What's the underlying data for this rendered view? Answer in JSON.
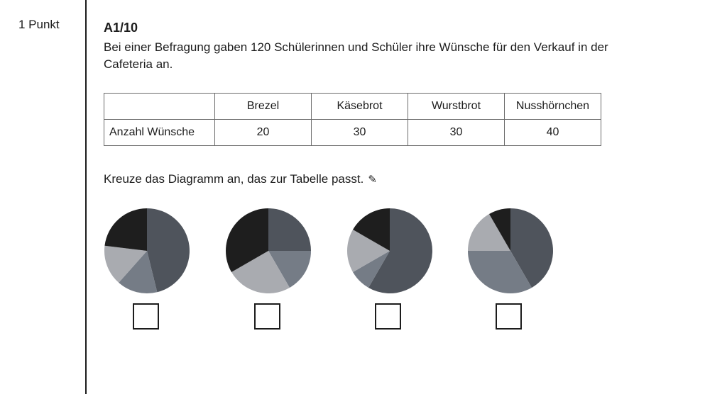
{
  "points_label": "1 Punkt",
  "task": {
    "id": "A1/10",
    "text": "Bei einer Befragung gaben 120 Schülerinnen und Schüler ihre Wünsche für den Verkauf in der Cafeteria an."
  },
  "table": {
    "row_label": "Anzahl Wünsche",
    "columns": [
      "Brezel",
      "Käsebrot",
      "Wurstbrot",
      "Nusshörnchen"
    ],
    "values": [
      "20",
      "30",
      "30",
      "40"
    ]
  },
  "instruction": "Kreuze das Diagramm an, das zur Tabelle passt.",
  "pencil_icon": "✎",
  "colors": {
    "dark_slate": "#4f545c",
    "mid_gray": "#757c86",
    "light_gray": "#a9abb0",
    "black": "#1e1e1e"
  },
  "chart_data": [
    {
      "type": "pie",
      "slices": [
        {
          "value": 60,
          "color": "#4f545c"
        },
        {
          "value": 20,
          "color": "#757c86"
        },
        {
          "value": 20,
          "color": "#a9abb0"
        },
        {
          "value": 30,
          "color": "#1e1e1e"
        }
      ]
    },
    {
      "type": "pie",
      "slices": [
        {
          "value": 30,
          "color": "#4f545c"
        },
        {
          "value": 20,
          "color": "#757c86"
        },
        {
          "value": 30,
          "color": "#a9abb0"
        },
        {
          "value": 40,
          "color": "#1e1e1e"
        }
      ]
    },
    {
      "type": "pie",
      "slices": [
        {
          "value": 70,
          "color": "#4f545c"
        },
        {
          "value": 10,
          "color": "#757c86"
        },
        {
          "value": 20,
          "color": "#a9abb0"
        },
        {
          "value": 20,
          "color": "#1e1e1e"
        }
      ]
    },
    {
      "type": "pie",
      "slices": [
        {
          "value": 50,
          "color": "#4f545c"
        },
        {
          "value": 40,
          "color": "#757c86"
        },
        {
          "value": 20,
          "color": "#a9abb0"
        },
        {
          "value": 10,
          "color": "#1e1e1e"
        }
      ]
    }
  ]
}
